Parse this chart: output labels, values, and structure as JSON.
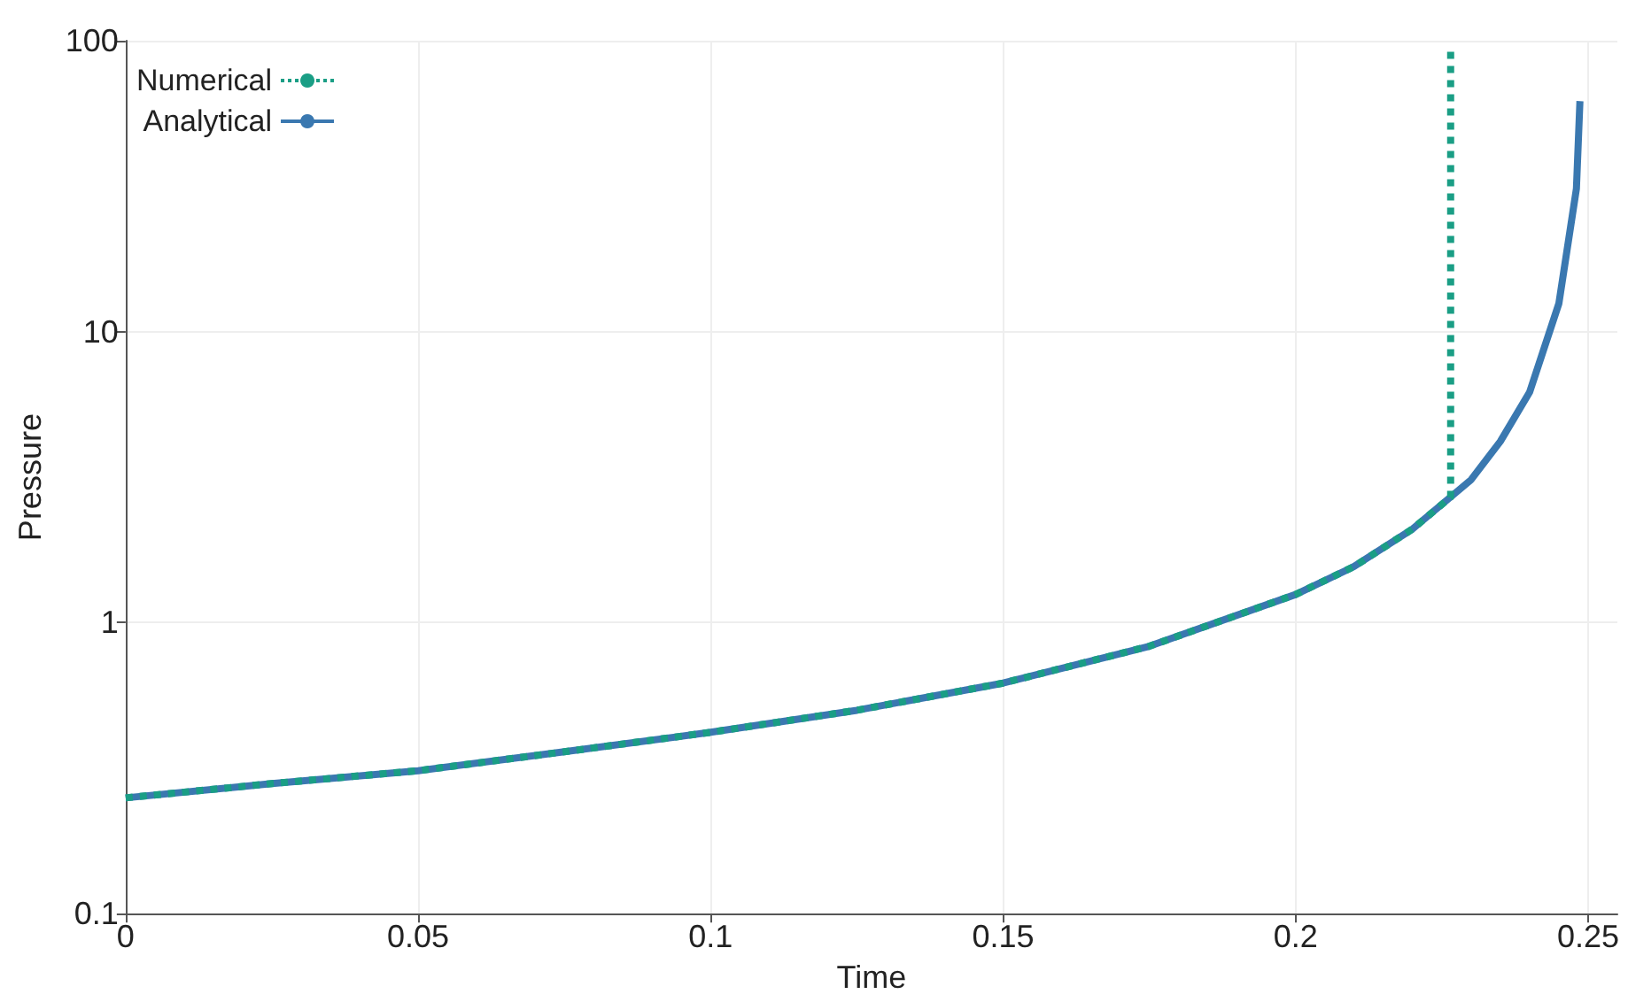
{
  "chart_data": {
    "type": "line",
    "xlabel": "Time",
    "ylabel": "Pressure",
    "log": "y",
    "grid": true,
    "legend": "top left",
    "marker": "none",
    "xlim": [
      0,
      0.255
    ],
    "xticks": [
      0,
      0.05,
      0.1,
      0.15,
      0.2,
      0.25
    ],
    "ylim": [
      0.1,
      100
    ],
    "yticks": [
      0.1,
      1,
      10,
      100
    ],
    "series": [
      {
        "name": "Numerical",
        "color": "#1a9e85",
        "line_style": "dotted",
        "x": [
          0,
          0.025,
          0.05,
          0.075,
          0.1,
          0.125,
          0.15,
          0.175,
          0.2,
          0.21,
          0.22,
          0.2265,
          0.2265
        ],
        "values": [
          0.25,
          0.28,
          0.31,
          0.36,
          0.42,
          0.5,
          0.62,
          0.83,
          1.25,
          1.56,
          2.1,
          2.7,
          93
        ]
      },
      {
        "name": "Analytical",
        "color": "#3a78b0",
        "line_style": "solid",
        "x": [
          0,
          0.025,
          0.05,
          0.075,
          0.1,
          0.125,
          0.15,
          0.175,
          0.2,
          0.21,
          0.22,
          0.23,
          0.235,
          0.24,
          0.245,
          0.248,
          0.2486
        ],
        "values": [
          0.25,
          0.28,
          0.31,
          0.36,
          0.42,
          0.5,
          0.62,
          0.83,
          1.25,
          1.56,
          2.1,
          3.1,
          4.2,
          6.2,
          12.5,
          31,
          62
        ]
      }
    ]
  }
}
